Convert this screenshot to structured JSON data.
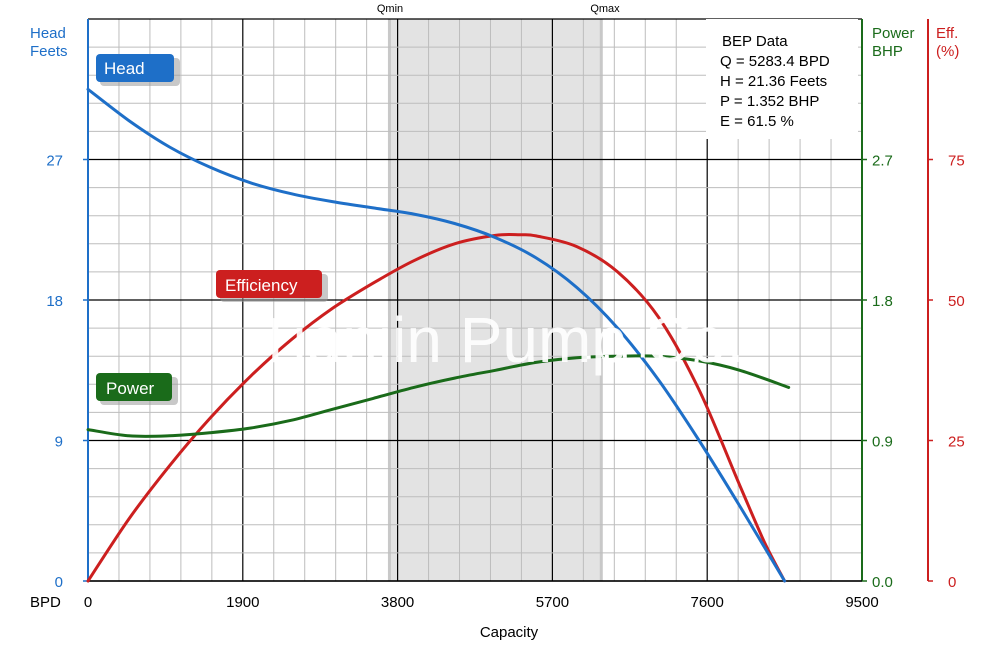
{
  "chart_data": {
    "type": "line",
    "xlabel": "Capacity",
    "x_unit_label": "BPD",
    "xlim": [
      0,
      9500
    ],
    "x_ticks": [
      "0",
      "1900",
      "3800",
      "5700",
      "7600",
      "9500"
    ],
    "grid": true,
    "axes": {
      "head": {
        "label_line1": "Head",
        "label_line2": "Feets",
        "ylim": [
          0,
          36
        ],
        "ticks": [
          "0",
          "9",
          "18",
          "27"
        ],
        "color": "#1e6fc8"
      },
      "power": {
        "label_line1": "Power",
        "label_line2": "BHP",
        "ylim": [
          0,
          3.6
        ],
        "ticks": [
          "0.0",
          "0.9",
          "1.8",
          "2.7"
        ],
        "color": "#1a6b1a"
      },
      "efficiency": {
        "label_line1": "Eff.",
        "label_line2": "(%)",
        "ylim": [
          0,
          100
        ],
        "ticks": [
          "0",
          "25",
          "50",
          "75"
        ],
        "color": "#cc1f1f"
      }
    },
    "operating_range": {
      "qmin": 3700,
      "qmax": 6300,
      "qmin_label": "Qmin",
      "qmax_label": "Qmax"
    },
    "series": [
      {
        "name": "Head",
        "axis": "head",
        "color": "#1e6fc8",
        "x": [
          0,
          500,
          1000,
          1500,
          2000,
          2500,
          3000,
          3500,
          4000,
          4500,
          5000,
          5500,
          6000,
          6500,
          7000,
          7500,
          8000,
          8550
        ],
        "y": [
          31.5,
          29.5,
          27.8,
          26.5,
          25.5,
          24.8,
          24.3,
          23.9,
          23.5,
          22.9,
          22.0,
          20.7,
          18.8,
          16.2,
          12.9,
          9.0,
          4.8,
          0
        ]
      },
      {
        "name": "Efficiency",
        "axis": "efficiency",
        "color": "#cc1f1f",
        "x": [
          0,
          500,
          1000,
          1500,
          2000,
          2500,
          3000,
          3500,
          4000,
          4500,
          5000,
          5300,
          5500,
          6000,
          6500,
          7000,
          7500,
          8000,
          8300,
          8550
        ],
        "y": [
          0,
          11,
          20.5,
          29,
          36.5,
          43,
          48.5,
          53,
          57,
          60,
          61.5,
          61.6,
          61.4,
          59.5,
          55,
          47,
          34,
          17,
          7,
          0
        ]
      },
      {
        "name": "Power",
        "axis": "power",
        "color": "#1a6b1a",
        "x": [
          0,
          500,
          1000,
          1500,
          2000,
          2500,
          3000,
          3500,
          4000,
          4500,
          5000,
          5500,
          6000,
          6500,
          7000,
          7500,
          8000,
          8600
        ],
        "y": [
          0.97,
          0.93,
          0.93,
          0.95,
          0.98,
          1.03,
          1.1,
          1.17,
          1.24,
          1.3,
          1.35,
          1.4,
          1.43,
          1.44,
          1.44,
          1.41,
          1.35,
          1.24
        ],
        "dashed_from": 5700,
        "dashed_to": 7600
      }
    ],
    "bep": {
      "title": "BEP Data",
      "lines": [
        "Q = 5283.4 BPD",
        "H = 21.36 Feets",
        "P = 1.352 BHP",
        "E = 61.5 %"
      ]
    },
    "watermark": "Tianjin Pump Co."
  }
}
